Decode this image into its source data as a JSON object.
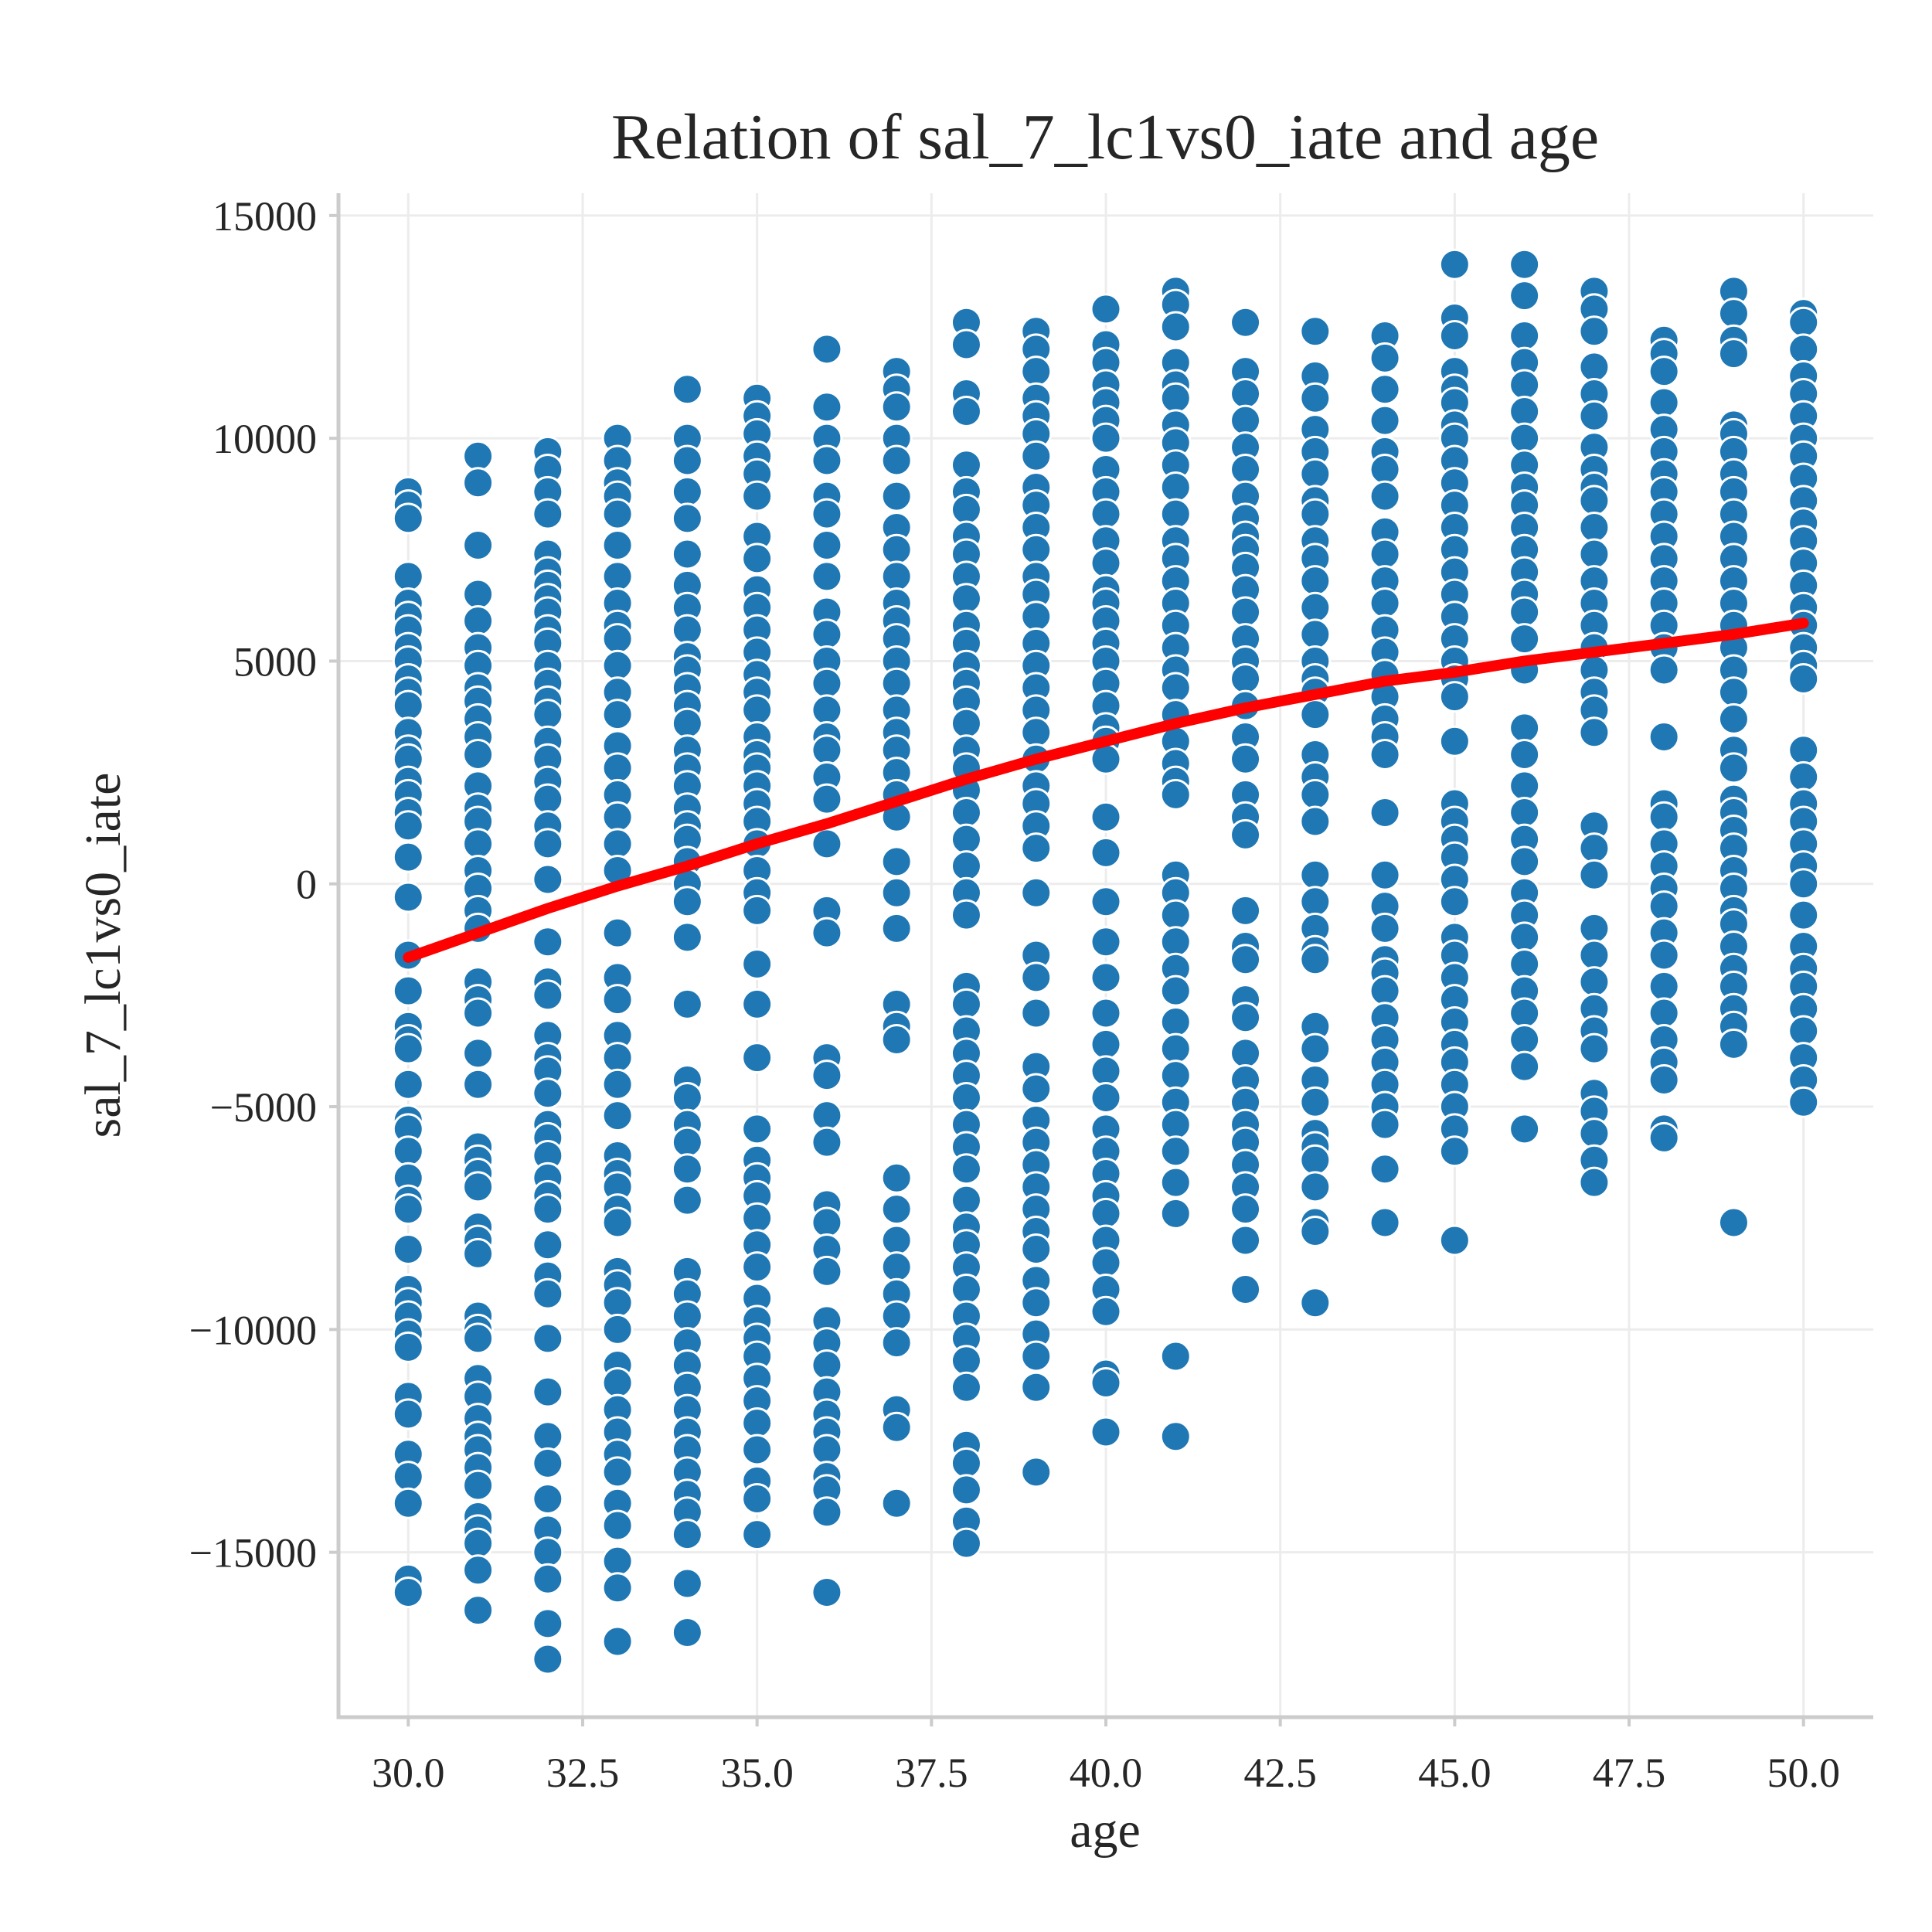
{
  "chart_data": {
    "type": "scatter",
    "title": "Relation of sal_7_lc1vs0_iate and age",
    "xlabel": "age",
    "ylabel": "sal_7_lc1vs0_iate",
    "xlim": [
      29.0,
      51.0
    ],
    "ylim": [
      -18700,
      15500
    ],
    "x_ticks": [
      30.0,
      32.5,
      35.0,
      37.5,
      40.0,
      42.5,
      45.0,
      47.5,
      50.0
    ],
    "x_tick_labels": [
      "30.0",
      "32.5",
      "35.0",
      "37.5",
      "40.0",
      "42.5",
      "45.0",
      "47.5",
      "50.0"
    ],
    "y_ticks": [
      -15000,
      -10000,
      -5000,
      0,
      5000,
      10000,
      15000
    ],
    "y_tick_labels": [
      "−15000",
      "−10000",
      "−5000",
      "0",
      "5000",
      "10000",
      "15000"
    ],
    "grid": true,
    "point_color": "#1f77b4",
    "trend_color": "#ff0000",
    "columns": [
      {
        "x": 30,
        "values": [
          8800,
          8500,
          8200,
          6900,
          6300,
          6000,
          5700,
          5300,
          5000,
          4600,
          4300,
          4000,
          3400,
          3000,
          2800,
          2300,
          2000,
          1600,
          1300,
          600,
          -300,
          -1600,
          -2400,
          -3200,
          -3500,
          -3700,
          -4500,
          -5300,
          -5500,
          -6000,
          -6600,
          -7100,
          -7300,
          -8200,
          -9100,
          -9400,
          -9700,
          -10100,
          -10400,
          -11500,
          -11900,
          -12800,
          -13300,
          -13900,
          -15600,
          -15900
        ]
      },
      {
        "x": 31,
        "values": [
          9600,
          9000,
          7600,
          6500,
          5900,
          5300,
          4900,
          4400,
          4100,
          3700,
          3300,
          2900,
          2200,
          1700,
          1400,
          900,
          300,
          -100,
          -600,
          -1000,
          -2200,
          -2600,
          -2900,
          -3800,
          -4500,
          -5900,
          -6200,
          -6500,
          -6800,
          -7700,
          -8000,
          -8300,
          -9700,
          -10000,
          -10200,
          -11100,
          -11500,
          -12000,
          -12400,
          -12700,
          -13100,
          -13500,
          -14200,
          -14500,
          -14800,
          -15400,
          -16300
        ]
      },
      {
        "x": 32,
        "values": [
          9700,
          9300,
          8800,
          8300,
          7400,
          7000,
          6700,
          6400,
          6100,
          5700,
          5400,
          4900,
          4500,
          4100,
          3800,
          3200,
          2800,
          2300,
          1900,
          1300,
          900,
          100,
          -1300,
          -2200,
          -2500,
          -3400,
          -3900,
          -4200,
          -4700,
          -5400,
          -5700,
          -6100,
          -6600,
          -7000,
          -7300,
          -8100,
          -8800,
          -9200,
          -10200,
          -11400,
          -12400,
          -13000,
          -13800,
          -14500,
          -15000,
          -15600,
          -16600,
          -17400
        ]
      },
      {
        "x": 33,
        "values": [
          10000,
          9500,
          9000,
          8700,
          8300,
          7600,
          6900,
          6300,
          5800,
          5500,
          4900,
          4300,
          3800,
          3100,
          2600,
          2000,
          1500,
          900,
          300,
          -1100,
          -2100,
          -2600,
          -3400,
          -3900,
          -4500,
          -5200,
          -6100,
          -6500,
          -6800,
          -7300,
          -7600,
          -8700,
          -9000,
          -9400,
          -10000,
          -10800,
          -11200,
          -11800,
          -12300,
          -12800,
          -13200,
          -13900,
          -14400,
          -15200,
          -15800,
          -17000
        ]
      },
      {
        "x": 34,
        "values": [
          11100,
          10000,
          9500,
          8800,
          8200,
          7400,
          6700,
          6200,
          5700,
          5100,
          4800,
          4400,
          4000,
          3600,
          3000,
          2600,
          2200,
          1700,
          1300,
          1000,
          500,
          0,
          -400,
          -1200,
          -2700,
          -4400,
          -4800,
          -5400,
          -5800,
          -6400,
          -7100,
          -8700,
          -9200,
          -9700,
          -10300,
          -10800,
          -11300,
          -11800,
          -12300,
          -12700,
          -13200,
          -13700,
          -14100,
          -14600,
          -15700,
          -16800
        ]
      },
      {
        "x": 35,
        "values": [
          10900,
          10500,
          10100,
          9600,
          9200,
          8700,
          7800,
          7300,
          6600,
          6200,
          5700,
          5200,
          4700,
          4300,
          3900,
          3300,
          2900,
          2600,
          2200,
          1800,
          1400,
          900,
          300,
          -200,
          -600,
          -1800,
          -2700,
          -3900,
          -5500,
          -6200,
          -6600,
          -7000,
          -7500,
          -8100,
          -8600,
          -9300,
          -9800,
          -10200,
          -10600,
          -11100,
          -11600,
          -12100,
          -12700,
          -13400,
          -13800,
          -14600
        ]
      },
      {
        "x": 36,
        "values": [
          12000,
          10700,
          10000,
          9500,
          8700,
          8300,
          7600,
          6900,
          6100,
          5600,
          5000,
          4500,
          3900,
          3300,
          3000,
          2400,
          1900,
          900,
          -600,
          -1100,
          -3900,
          -4300,
          -5200,
          -5800,
          -7200,
          -7600,
          -8200,
          -8700,
          -9800,
          -10300,
          -10800,
          -11400,
          -11900,
          -12300,
          -12700,
          -13300,
          -13600,
          -14100,
          -15900
        ]
      },
      {
        "x": 37,
        "values": [
          11500,
          11100,
          10700,
          10000,
          9500,
          8700,
          8000,
          7500,
          6900,
          6300,
          5900,
          5500,
          5000,
          4500,
          3900,
          3400,
          3000,
          2500,
          2000,
          1500,
          500,
          -200,
          -1000,
          -2700,
          -3200,
          -3500,
          -6600,
          -7300,
          -8000,
          -8600,
          -9200,
          -9700,
          -10300,
          -11800,
          -12200,
          -13900
        ]
      },
      {
        "x": 38,
        "values": [
          12600,
          12100,
          11000,
          10600,
          9400,
          8800,
          8400,
          7800,
          7400,
          6900,
          6400,
          5800,
          5400,
          4900,
          4500,
          4100,
          3600,
          3000,
          2600,
          2100,
          1600,
          1000,
          400,
          -200,
          -700,
          -2300,
          -2700,
          -3300,
          -3800,
          -4300,
          -4800,
          -5400,
          -5900,
          -6400,
          -7100,
          -7700,
          -8100,
          -8600,
          -9100,
          -9700,
          -10200,
          -10700,
          -11300,
          -12600,
          -13000,
          -13600,
          -14300,
          -14800
        ]
      },
      {
        "x": 39,
        "values": [
          12400,
          12000,
          11500,
          10900,
          10500,
          10100,
          9600,
          8900,
          8500,
          8000,
          7500,
          6900,
          6500,
          6000,
          5400,
          4900,
          4400,
          3900,
          3400,
          2800,
          2200,
          1800,
          1300,
          800,
          -200,
          -1600,
          -2100,
          -2900,
          -4100,
          -4600,
          -5300,
          -5800,
          -6300,
          -6800,
          -7300,
          -7800,
          -8200,
          -8900,
          -9400,
          -10100,
          -10600,
          -11300,
          -13200
        ]
      },
      {
        "x": 40,
        "values": [
          12900,
          12100,
          11700,
          11200,
          10800,
          10400,
          10000,
          9300,
          8800,
          8300,
          7700,
          7200,
          6600,
          6300,
          5900,
          5400,
          5000,
          4500,
          4000,
          3500,
          3200,
          2800,
          1500,
          700,
          -400,
          -1300,
          -2100,
          -2900,
          -3600,
          -4200,
          -4800,
          -5500,
          -6000,
          -6500,
          -7000,
          -7400,
          -8000,
          -8500,
          -9100,
          -9600,
          -11000,
          -11200,
          -12300
        ]
      },
      {
        "x": 41,
        "values": [
          13300,
          13000,
          12500,
          11700,
          11200,
          10900,
          10300,
          9900,
          9400,
          8900,
          8300,
          7700,
          7300,
          6800,
          6300,
          5800,
          5300,
          4800,
          4400,
          3800,
          3200,
          2700,
          2300,
          2000,
          200,
          -200,
          -700,
          -1300,
          -1900,
          -2400,
          -3100,
          -3700,
          -4300,
          -4900,
          -5400,
          -6000,
          -6700,
          -7400,
          -10600,
          -12400
        ]
      },
      {
        "x": 42,
        "values": [
          12600,
          11500,
          11000,
          10400,
          9800,
          9300,
          8700,
          8200,
          7800,
          7500,
          7100,
          6600,
          6100,
          5500,
          5000,
          4600,
          4000,
          3300,
          2800,
          2000,
          1500,
          1100,
          -600,
          -1400,
          -1700,
          -2600,
          -3000,
          -3800,
          -4400,
          -4900,
          -5400,
          -5800,
          -6300,
          -6800,
          -7300,
          -8000,
          -9100
        ]
      },
      {
        "x": 43,
        "values": [
          12400,
          11400,
          10900,
          10200,
          9700,
          9200,
          8600,
          8300,
          7700,
          7300,
          6800,
          6200,
          5600,
          5000,
          4600,
          4300,
          3800,
          2900,
          2400,
          2000,
          1400,
          200,
          -400,
          -1000,
          -1500,
          -1700,
          -3200,
          -3700,
          -4400,
          -4900,
          -5600,
          -5900,
          -6200,
          -6800,
          -7600,
          -7800,
          -9400
        ]
      },
      {
        "x": 44,
        "values": [
          12300,
          11800,
          11100,
          10400,
          9700,
          9300,
          8700,
          7900,
          7400,
          6800,
          6300,
          5700,
          5200,
          4700,
          4200,
          3700,
          3300,
          2900,
          1600,
          200,
          -500,
          -1000,
          -1700,
          -2000,
          -2400,
          -3000,
          -3500,
          -4000,
          -4500,
          -5000,
          -5400,
          -6400,
          -7600
        ]
      },
      {
        "x": 45,
        "values": [
          13900,
          12700,
          12300,
          11500,
          11100,
          10800,
          10300,
          10000,
          9500,
          9000,
          8500,
          8000,
          7500,
          7000,
          6500,
          6000,
          5500,
          5000,
          4600,
          4200,
          3200,
          1800,
          1400,
          1000,
          600,
          100,
          -400,
          -1200,
          -1600,
          -2100,
          -2600,
          -3100,
          -3600,
          -4000,
          -4500,
          -5000,
          -5500,
          -6000,
          -8000
        ]
      },
      {
        "x": 46,
        "values": [
          13900,
          13200,
          12300,
          11700,
          11200,
          10600,
          10000,
          9400,
          8900,
          8500,
          8000,
          7500,
          7000,
          6500,
          6100,
          5500,
          4800,
          3500,
          2900,
          2200,
          1600,
          1000,
          500,
          -200,
          -700,
          -1200,
          -1800,
          -2400,
          -2900,
          -3500,
          -4100,
          -5500
        ]
      },
      {
        "x": 47,
        "values": [
          13300,
          12900,
          12400,
          11600,
          11000,
          10500,
          9800,
          9300,
          8900,
          8600,
          8000,
          7400,
          6800,
          6300,
          5800,
          5300,
          4800,
          4300,
          3900,
          3400,
          1300,
          800,
          200,
          -1000,
          -1600,
          -2200,
          -2800,
          -3300,
          -3700,
          -4700,
          -5100,
          -5600,
          -6200,
          -6700
        ]
      },
      {
        "x": 48,
        "values": [
          12200,
          11900,
          11500,
          10800,
          10200,
          9700,
          9200,
          8800,
          8300,
          7800,
          7300,
          6800,
          6300,
          5800,
          5300,
          4800,
          3300,
          1800,
          1500,
          900,
          400,
          -100,
          -500,
          -1100,
          -1600,
          -2300,
          -2900,
          -3500,
          -4000,
          -4400,
          -5500,
          -5700
        ]
      },
      {
        "x": 49,
        "values": [
          13300,
          12800,
          12200,
          11900,
          10300,
          10100,
          9700,
          9200,
          8800,
          8300,
          7800,
          7300,
          6800,
          6300,
          5800,
          5300,
          4800,
          4300,
          3700,
          3000,
          2600,
          1900,
          1600,
          1200,
          800,
          300,
          -100,
          -600,
          -900,
          -1400,
          -1900,
          -2300,
          -2800,
          -3200,
          -3600,
          -7600
        ]
      },
      {
        "x": 50,
        "values": [
          12800,
          12600,
          12000,
          11400,
          11000,
          10500,
          10000,
          9600,
          9100,
          8600,
          8100,
          7700,
          7200,
          6700,
          6200,
          5800,
          5300,
          4900,
          4600,
          3000,
          2400,
          1800,
          1400,
          900,
          400,
          0,
          -700,
          -1400,
          -1900,
          -2300,
          -2800,
          -3300,
          -3900,
          -4400,
          -4900
        ]
      }
    ],
    "trend": {
      "x": [
        30,
        31,
        32,
        33,
        34,
        35,
        36,
        37,
        38,
        39,
        40,
        41,
        42,
        43,
        44,
        45,
        46,
        47,
        48,
        49,
        50
      ],
      "y": [
        -1650,
        -1100,
        -550,
        -50,
        400,
        900,
        1350,
        1850,
        2350,
        2800,
        3200,
        3600,
        3950,
        4250,
        4550,
        4750,
        5000,
        5200,
        5400,
        5600,
        5850
      ]
    }
  }
}
